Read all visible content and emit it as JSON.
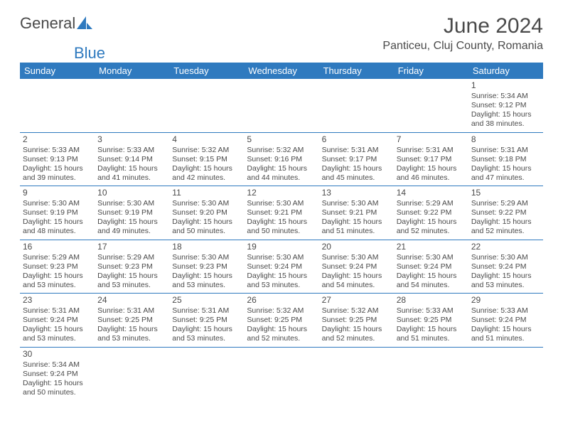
{
  "logo": {
    "text_general": "General",
    "text_blue": "Blue"
  },
  "title": "June 2024",
  "location": "Panticeu, Cluj County, Romania",
  "colors": {
    "header_bg": "#2f7abf",
    "header_text": "#ffffff",
    "border": "#2f7abf",
    "text": "#4a4a4a"
  },
  "day_headers": [
    "Sunday",
    "Monday",
    "Tuesday",
    "Wednesday",
    "Thursday",
    "Friday",
    "Saturday"
  ],
  "weeks": [
    [
      null,
      null,
      null,
      null,
      null,
      null,
      {
        "n": "1",
        "sr": "5:34 AM",
        "ss": "9:12 PM",
        "dl": "15 hours and 38 minutes."
      }
    ],
    [
      {
        "n": "2",
        "sr": "5:33 AM",
        "ss": "9:13 PM",
        "dl": "15 hours and 39 minutes."
      },
      {
        "n": "3",
        "sr": "5:33 AM",
        "ss": "9:14 PM",
        "dl": "15 hours and 41 minutes."
      },
      {
        "n": "4",
        "sr": "5:32 AM",
        "ss": "9:15 PM",
        "dl": "15 hours and 42 minutes."
      },
      {
        "n": "5",
        "sr": "5:32 AM",
        "ss": "9:16 PM",
        "dl": "15 hours and 44 minutes."
      },
      {
        "n": "6",
        "sr": "5:31 AM",
        "ss": "9:17 PM",
        "dl": "15 hours and 45 minutes."
      },
      {
        "n": "7",
        "sr": "5:31 AM",
        "ss": "9:17 PM",
        "dl": "15 hours and 46 minutes."
      },
      {
        "n": "8",
        "sr": "5:31 AM",
        "ss": "9:18 PM",
        "dl": "15 hours and 47 minutes."
      }
    ],
    [
      {
        "n": "9",
        "sr": "5:30 AM",
        "ss": "9:19 PM",
        "dl": "15 hours and 48 minutes."
      },
      {
        "n": "10",
        "sr": "5:30 AM",
        "ss": "9:19 PM",
        "dl": "15 hours and 49 minutes."
      },
      {
        "n": "11",
        "sr": "5:30 AM",
        "ss": "9:20 PM",
        "dl": "15 hours and 50 minutes."
      },
      {
        "n": "12",
        "sr": "5:30 AM",
        "ss": "9:21 PM",
        "dl": "15 hours and 50 minutes."
      },
      {
        "n": "13",
        "sr": "5:30 AM",
        "ss": "9:21 PM",
        "dl": "15 hours and 51 minutes."
      },
      {
        "n": "14",
        "sr": "5:29 AM",
        "ss": "9:22 PM",
        "dl": "15 hours and 52 minutes."
      },
      {
        "n": "15",
        "sr": "5:29 AM",
        "ss": "9:22 PM",
        "dl": "15 hours and 52 minutes."
      }
    ],
    [
      {
        "n": "16",
        "sr": "5:29 AM",
        "ss": "9:23 PM",
        "dl": "15 hours and 53 minutes."
      },
      {
        "n": "17",
        "sr": "5:29 AM",
        "ss": "9:23 PM",
        "dl": "15 hours and 53 minutes."
      },
      {
        "n": "18",
        "sr": "5:30 AM",
        "ss": "9:23 PM",
        "dl": "15 hours and 53 minutes."
      },
      {
        "n": "19",
        "sr": "5:30 AM",
        "ss": "9:24 PM",
        "dl": "15 hours and 53 minutes."
      },
      {
        "n": "20",
        "sr": "5:30 AM",
        "ss": "9:24 PM",
        "dl": "15 hours and 54 minutes."
      },
      {
        "n": "21",
        "sr": "5:30 AM",
        "ss": "9:24 PM",
        "dl": "15 hours and 54 minutes."
      },
      {
        "n": "22",
        "sr": "5:30 AM",
        "ss": "9:24 PM",
        "dl": "15 hours and 53 minutes."
      }
    ],
    [
      {
        "n": "23",
        "sr": "5:31 AM",
        "ss": "9:24 PM",
        "dl": "15 hours and 53 minutes."
      },
      {
        "n": "24",
        "sr": "5:31 AM",
        "ss": "9:25 PM",
        "dl": "15 hours and 53 minutes."
      },
      {
        "n": "25",
        "sr": "5:31 AM",
        "ss": "9:25 PM",
        "dl": "15 hours and 53 minutes."
      },
      {
        "n": "26",
        "sr": "5:32 AM",
        "ss": "9:25 PM",
        "dl": "15 hours and 52 minutes."
      },
      {
        "n": "27",
        "sr": "5:32 AM",
        "ss": "9:25 PM",
        "dl": "15 hours and 52 minutes."
      },
      {
        "n": "28",
        "sr": "5:33 AM",
        "ss": "9:25 PM",
        "dl": "15 hours and 51 minutes."
      },
      {
        "n": "29",
        "sr": "5:33 AM",
        "ss": "9:24 PM",
        "dl": "15 hours and 51 minutes."
      }
    ],
    [
      {
        "n": "30",
        "sr": "5:34 AM",
        "ss": "9:24 PM",
        "dl": "15 hours and 50 minutes."
      },
      null,
      null,
      null,
      null,
      null,
      null
    ]
  ],
  "labels": {
    "sunrise": "Sunrise: ",
    "sunset": "Sunset: ",
    "daylight": "Daylight: "
  }
}
